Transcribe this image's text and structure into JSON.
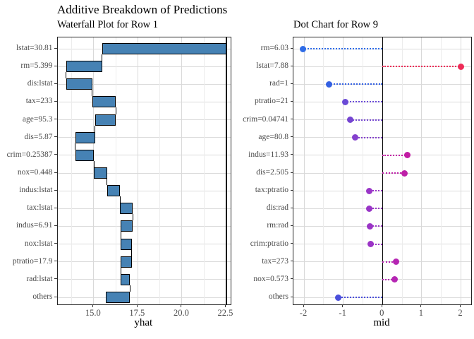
{
  "title": "Additive Breakdown of Predictions",
  "chart_data": [
    {
      "type": "bar",
      "subtype": "waterfall",
      "title": "Waterfall Plot for Row 1",
      "xlabel": "yhat",
      "xlim": [
        12.95,
        22.76
      ],
      "xticks": [
        {
          "value": 15.0,
          "label": "15.0"
        },
        {
          "value": 17.5,
          "label": "17.5"
        },
        {
          "value": 20.0,
          "label": "20.0"
        },
        {
          "value": 22.5,
          "label": "22.5"
        }
      ],
      "minor_xticks": [
        13.75,
        16.25,
        18.75,
        21.25
      ],
      "refline_x": 22.53,
      "bar_color": "#4682B4",
      "bar_border_color": "#000000",
      "rows": [
        {
          "label": "lstat=30.81",
          "start": 22.53,
          "end": 15.48
        },
        {
          "label": "rm=5.399",
          "start": 15.48,
          "end": 13.43
        },
        {
          "label": "dis:lstat",
          "start": 13.43,
          "end": 14.92
        },
        {
          "label": "tax=233",
          "start": 14.92,
          "end": 16.26
        },
        {
          "label": "age=95.3",
          "start": 16.26,
          "end": 15.08
        },
        {
          "label": "dis=5.87",
          "start": 15.08,
          "end": 13.95
        },
        {
          "label": "crim=0.25387",
          "start": 13.95,
          "end": 15.01
        },
        {
          "label": "nox=0.448",
          "start": 15.01,
          "end": 15.76
        },
        {
          "label": "indus:lstat",
          "start": 15.76,
          "end": 16.49
        },
        {
          "label": "tax:lstat",
          "start": 16.49,
          "end": 17.21
        },
        {
          "label": "indus=6.91",
          "start": 17.21,
          "end": 16.53
        },
        {
          "label": "nox:lstat",
          "start": 16.53,
          "end": 17.15
        },
        {
          "label": "ptratio=17.9",
          "start": 17.15,
          "end": 16.53
        },
        {
          "label": "rad:lstat",
          "start": 16.53,
          "end": 17.05
        },
        {
          "label": "others",
          "start": 17.05,
          "end": 15.69
        }
      ]
    },
    {
      "type": "scatter",
      "subtype": "dot-lollipop",
      "title": "Dot Chart for Row 9",
      "xlabel": "mid",
      "xlim": [
        -2.27,
        2.26
      ],
      "xticks": [
        {
          "value": -2,
          "label": "-2"
        },
        {
          "value": -1,
          "label": "-1"
        },
        {
          "value": 0,
          "label": "0"
        },
        {
          "value": 1,
          "label": "1"
        },
        {
          "value": 2,
          "label": "2"
        }
      ],
      "minor_xticks": [
        -1.5,
        -0.5,
        0.5,
        1.5
      ],
      "refline_x": 0,
      "rows": [
        {
          "label": "rm=6.03",
          "value": -2.03,
          "color": "#2E6BE6"
        },
        {
          "label": "lstat=7.88",
          "value": 2.0,
          "color": "#EE2B57"
        },
        {
          "label": "rad=1",
          "value": -1.37,
          "color": "#3360E2"
        },
        {
          "label": "ptratio=21",
          "value": -0.95,
          "color": "#6A4AD6"
        },
        {
          "label": "crim=0.04741",
          "value": -0.83,
          "color": "#7545D1"
        },
        {
          "label": "age=80.8",
          "value": -0.69,
          "color": "#8440CD"
        },
        {
          "label": "indus=11.93",
          "value": 0.64,
          "color": "#C21CA4"
        },
        {
          "label": "dis=2.505",
          "value": 0.56,
          "color": "#BE20A8"
        },
        {
          "label": "tax:ptratio",
          "value": -0.33,
          "color": "#9935C7"
        },
        {
          "label": "dis:rad",
          "value": -0.33,
          "color": "#9935C7"
        },
        {
          "label": "rm:rad",
          "value": -0.32,
          "color": "#9A34C6"
        },
        {
          "label": "crim:ptratio",
          "value": -0.31,
          "color": "#9B33C6"
        },
        {
          "label": "tax=273",
          "value": 0.34,
          "color": "#B525B2"
        },
        {
          "label": "nox=0.573",
          "value": 0.31,
          "color": "#B526B3"
        },
        {
          "label": "others",
          "value": -1.12,
          "color": "#4A4FDB"
        }
      ]
    }
  ],
  "style": {
    "grid_major": "#d9d9d9",
    "grid_minor": "#ececec",
    "grid_horizontal": "#dbdbdb",
    "panel_border": "#262626",
    "refline": "#000000",
    "title_text": "#000000",
    "tick_text": "#4a4a4a"
  }
}
